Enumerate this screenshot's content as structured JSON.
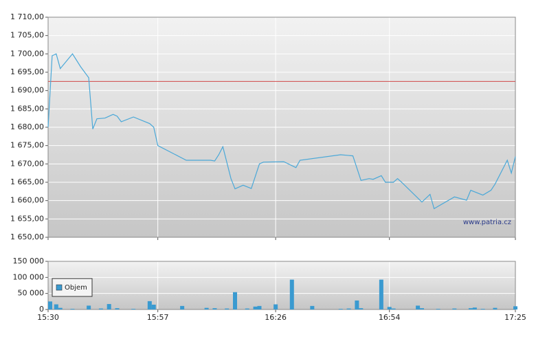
{
  "chart_data": [
    {
      "type": "line",
      "color": "#4aa8d8",
      "x": [
        "15:30",
        "15:31",
        "15:32",
        "15:33",
        "15:36",
        "15:38",
        "15:40",
        "15:41",
        "15:42",
        "15:44",
        "15:46",
        "15:47",
        "15:48",
        "15:51",
        "15:55",
        "15:56",
        "15:57",
        "16:04",
        "16:10",
        "16:11",
        "16:12",
        "16:13",
        "16:15",
        "16:16",
        "16:18",
        "16:20",
        "16:22",
        "16:23",
        "16:28",
        "16:31",
        "16:32",
        "16:42",
        "16:45",
        "16:47",
        "16:49",
        "16:50",
        "16:52",
        "16:53",
        "16:55",
        "16:56",
        "16:57",
        "17:02",
        "17:04",
        "17:05",
        "17:10",
        "17:13",
        "17:14",
        "17:17",
        "17:19",
        "17:20",
        "17:23",
        "17:24",
        "17:25"
      ],
      "values": [
        1680,
        1699.5,
        1700,
        1696,
        1700,
        1696.5,
        1693.5,
        1679.5,
        1682.3,
        1682.5,
        1683.5,
        1683,
        1681.5,
        1682.8,
        1681,
        1680,
        1675,
        1671,
        1671,
        1670.8,
        1672.5,
        1674.7,
        1666,
        1663.2,
        1664.2,
        1663.3,
        1670,
        1670.5,
        1670.6,
        1669,
        1671,
        1672.5,
        1672.2,
        1665.5,
        1666,
        1665.8,
        1666.8,
        1665,
        1665,
        1666,
        1665,
        1659.6,
        1661.7,
        1657.8,
        1661,
        1660.1,
        1662.8,
        1661.5,
        1662.8,
        1664.5,
        1671,
        1667.5,
        1672
      ],
      "reference_line": {
        "value": 1692.5,
        "color": "#d04848"
      },
      "xlim": [
        "15:30",
        "17:25"
      ],
      "xticks": [
        "15:30",
        "15:57",
        "16:26",
        "16:54",
        "17:25"
      ],
      "ylim": [
        1650,
        1710
      ],
      "yticks": [
        {
          "value": 1650,
          "label": "1 650,00"
        },
        {
          "value": 1655,
          "label": "1 655,00"
        },
        {
          "value": 1660,
          "label": "1 660,00"
        },
        {
          "value": 1665,
          "label": "1 665,00"
        },
        {
          "value": 1670,
          "label": "1 670,00"
        },
        {
          "value": 1675,
          "label": "1 675,00"
        },
        {
          "value": 1680,
          "label": "1 680,00"
        },
        {
          "value": 1685,
          "label": "1 685,00"
        },
        {
          "value": 1690,
          "label": "1 690,00"
        },
        {
          "value": 1695,
          "label": "1 695,00"
        },
        {
          "value": 1700,
          "label": "1 700,00"
        },
        {
          "value": 1705,
          "label": "1 705,00"
        },
        {
          "value": 1710,
          "label": "1 710,00"
        }
      ],
      "grid": true,
      "watermark": "www.patria.cz"
    },
    {
      "type": "bar",
      "x": [
        "15:30",
        "15:32",
        "15:33",
        "15:36",
        "15:40",
        "15:43",
        "15:45",
        "15:47",
        "15:51",
        "15:55",
        "15:56",
        "16:03",
        "16:09",
        "16:11",
        "16:14",
        "16:16",
        "16:19",
        "16:21",
        "16:22",
        "16:26",
        "16:30",
        "16:35",
        "16:42",
        "16:44",
        "16:46",
        "16:47",
        "16:52",
        "16:54",
        "16:55",
        "17:01",
        "17:02",
        "17:06",
        "17:10",
        "17:14",
        "17:15",
        "17:17",
        "17:20",
        "17:25"
      ],
      "series": [
        {
          "name": "Objem",
          "color": "#3a9ad0",
          "values": [
            25000,
            16000,
            5000,
            2000,
            12000,
            3000,
            17000,
            4000,
            2000,
            26000,
            15000,
            11000,
            5000,
            4000,
            3000,
            54000,
            3000,
            9000,
            11000,
            16000,
            93000,
            11000,
            2000,
            3000,
            28000,
            4000,
            93000,
            8000,
            3000,
            12000,
            4000,
            2000,
            3000,
            4000,
            6000,
            2000,
            5000,
            10000
          ]
        }
      ],
      "xlim": [
        "15:30",
        "17:25"
      ],
      "xticks": [
        "15:30",
        "15:57",
        "16:26",
        "16:54",
        "17:25"
      ],
      "ylim": [
        0,
        150000
      ],
      "yticks": [
        0,
        {
          "value": 50000,
          "label": "50 000"
        },
        {
          "value": 100000,
          "label": "100 000"
        },
        {
          "value": 150000,
          "label": "150 000"
        }
      ],
      "grid": true,
      "legend": "upper left"
    }
  ]
}
